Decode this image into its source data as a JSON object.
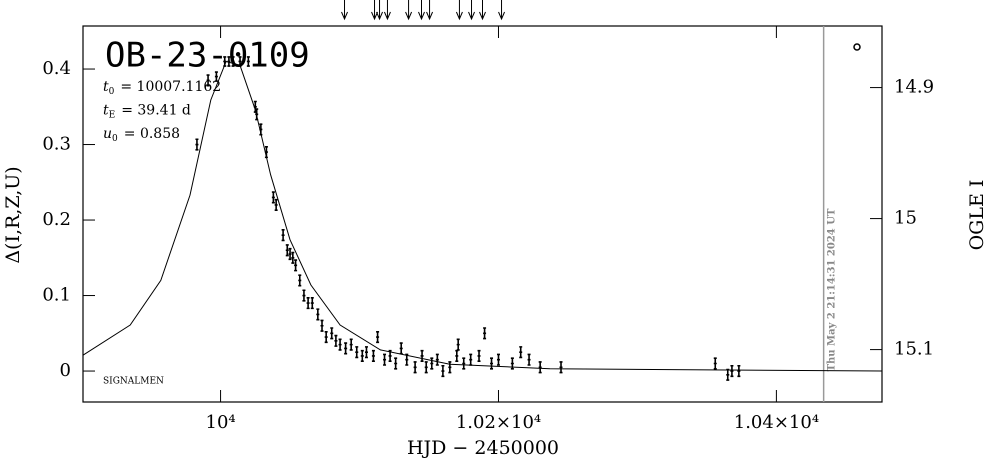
{
  "chart_data": {
    "type": "scatter",
    "title": "OB-23-0109",
    "software": "SIGNALMEN",
    "timestamp": "Thu May  2 21:14:31 2024 UT",
    "xlabel": "HJD − 2450000",
    "ylabel": "Δ(I,R,Z,U)",
    "y2label": "OGLE I",
    "params": [
      {
        "symbol": "t",
        "sub": "0",
        "text": "= 10007.1162"
      },
      {
        "symbol": "t",
        "sub": "E",
        "text": "= 39.41  d"
      },
      {
        "symbol": "u",
        "sub": "0",
        "text": "= 0.858"
      }
    ],
    "xlim": [
      9901,
      10476
    ],
    "ylim": [
      -0.041,
      0.457
    ],
    "y2lim": [
      15.14,
      14.853
    ],
    "xticks": [
      {
        "value": 10000,
        "label": "10⁴"
      },
      {
        "value": 10200,
        "label": "1.02×10⁴"
      },
      {
        "value": 10400,
        "label": "1.04×10⁴"
      }
    ],
    "yticks": [
      0,
      0.1,
      0.2,
      0.3,
      0.4
    ],
    "y2ticks": [
      14.9,
      15,
      15.1
    ],
    "color": "#000000",
    "model_color": "#000000",
    "now_line": 10434,
    "now_line_color": "#999999",
    "arrows_x": [
      10089.2,
      10110.8,
      10114.4,
      10120.1,
      10135.3,
      10144.6,
      10150.4,
      10171.9,
      10180.6,
      10188.5,
      10202.2
    ],
    "x": [
      9983,
      9991,
      9997,
      10003,
      10006,
      10009,
      10014,
      10020,
      10025,
      10026,
      10029,
      10033,
      10038,
      10040,
      10045,
      10048,
      10050,
      10052,
      10054,
      10057,
      10060,
      10063,
      10066,
      10070,
      10073,
      10076,
      10080,
      10083,
      10086,
      10090,
      10094,
      10098,
      10102,
      10105,
      10110,
      10113,
      10118,
      10122,
      10126,
      10130,
      10134,
      10140,
      10145,
      10148,
      10152,
      10156,
      10160,
      10165,
      10170,
      10171,
      10175,
      10180,
      10186,
      10190,
      10195,
      10200,
      10210,
      10216,
      10222,
      10230,
      10245,
      10356,
      10365,
      10368,
      10373
    ],
    "values": [
      0.3,
      0.385,
      0.39,
      0.41,
      0.41,
      0.41,
      0.41,
      0.41,
      0.35,
      0.34,
      0.32,
      0.29,
      0.23,
      0.22,
      0.18,
      0.16,
      0.155,
      0.15,
      0.14,
      0.12,
      0.1,
      0.09,
      0.09,
      0.075,
      0.06,
      0.045,
      0.05,
      0.04,
      0.035,
      0.03,
      0.035,
      0.025,
      0.02,
      0.025,
      0.02,
      0.045,
      0.015,
      0.02,
      0.01,
      0.03,
      0.015,
      0.005,
      0.02,
      0.005,
      0.01,
      0.015,
      0.0,
      0.005,
      0.02,
      0.035,
      0.01,
      0.015,
      0.02,
      0.05,
      0.01,
      0.015,
      0.01,
      0.025,
      0.015,
      0.005,
      0.005,
      0.01,
      -0.005,
      0.0,
      0.0
    ],
    "errors": [
      0.007,
      0.007,
      0.006,
      0.006,
      0.006,
      0.006,
      0.006,
      0.006,
      0.007,
      0.007,
      0.007,
      0.007,
      0.007,
      0.007,
      0.007,
      0.007,
      0.007,
      0.007,
      0.007,
      0.007,
      0.007,
      0.007,
      0.007,
      0.007,
      0.007,
      0.007,
      0.007,
      0.007,
      0.007,
      0.007,
      0.007,
      0.007,
      0.007,
      0.007,
      0.007,
      0.007,
      0.007,
      0.007,
      0.007,
      0.007,
      0.007,
      0.007,
      0.007,
      0.007,
      0.007,
      0.007,
      0.007,
      0.007,
      0.007,
      0.007,
      0.007,
      0.007,
      0.007,
      0.007,
      0.007,
      0.007,
      0.007,
      0.007,
      0.007,
      0.007,
      0.007,
      0.007,
      0.007,
      0.007,
      0.007
    ],
    "model": {
      "x": [
        9901,
        9935,
        9957,
        9978,
        9993,
        10004,
        10014,
        10025,
        10036,
        10050,
        10065,
        10086,
        10115,
        10165,
        10237,
        10476
      ],
      "values": [
        0.021,
        0.061,
        0.12,
        0.233,
        0.359,
        0.41,
        0.405,
        0.346,
        0.26,
        0.174,
        0.114,
        0.061,
        0.028,
        0.009,
        0.003,
        0
      ]
    }
  }
}
